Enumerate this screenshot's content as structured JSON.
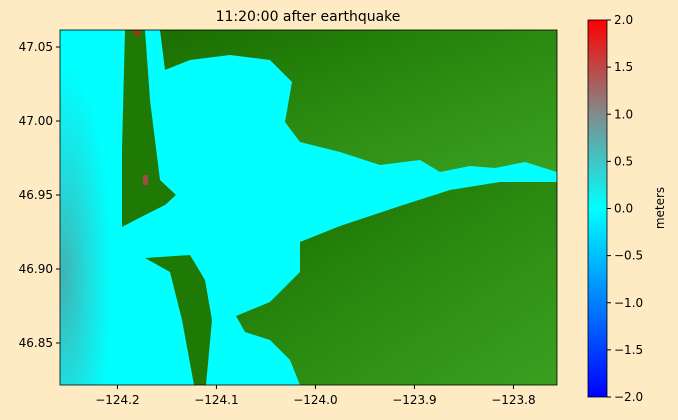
{
  "chart_data": {
    "type": "heatmap",
    "title": "11:20:00 after earthquake",
    "xlim": [
      -124.258,
      -123.756
    ],
    "ylim": [
      46.8216,
      47.0615
    ],
    "xticks": [
      {
        "value": -124.2,
        "label": "−124.2"
      },
      {
        "value": -124.1,
        "label": "−124.1"
      },
      {
        "value": -124.0,
        "label": "−124.0"
      },
      {
        "value": -123.9,
        "label": "−123.9"
      },
      {
        "value": -123.8,
        "label": "−123.8"
      }
    ],
    "yticks": [
      {
        "value": 46.85,
        "label": "46.85"
      },
      {
        "value": 46.9,
        "label": "46.90"
      },
      {
        "value": 46.95,
        "label": "46.95"
      },
      {
        "value": 47.0,
        "label": "47.00"
      },
      {
        "value": 47.05,
        "label": "47.05"
      }
    ],
    "colorbar": {
      "label": "meters",
      "clim": [
        -2,
        2
      ],
      "ticks": [
        {
          "value": -2,
          "label": "−2.0"
        },
        {
          "value": -1.5,
          "label": "−1.5"
        },
        {
          "value": -1,
          "label": "−1.0"
        },
        {
          "value": -0.5,
          "label": "−0.5"
        },
        {
          "value": 0,
          "label": "0.0"
        },
        {
          "value": 0.5,
          "label": "0.5"
        },
        {
          "value": 1,
          "label": "1.0"
        },
        {
          "value": 1.5,
          "label": "1.5"
        },
        {
          "value": 2,
          "label": "2.0"
        }
      ],
      "colormap": [
        {
          "value": -2,
          "color": "#0000ff"
        },
        {
          "value": 0,
          "color": "#00ffff"
        },
        {
          "value": 1,
          "color": "#808c8c"
        },
        {
          "value": 2,
          "color": "#ff0000"
        }
      ]
    }
  }
}
